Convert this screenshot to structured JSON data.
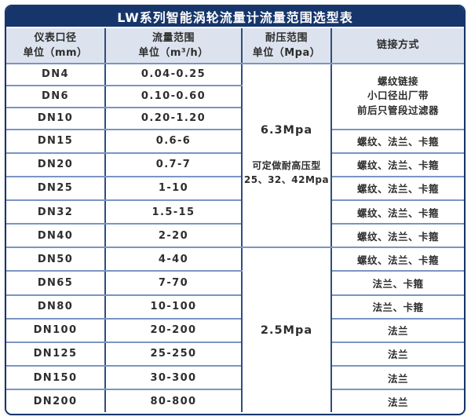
{
  "title": "LW系列智能涡轮流量计流量范围选型表",
  "columns": [
    {
      "line1": "仪表口径",
      "line2": "单位（mm）"
    },
    {
      "line1": "流量范围",
      "line2": "单位（m³/h）"
    },
    {
      "line1": "耐压范围",
      "line2": "单位（Mpa）"
    },
    {
      "line1": "链接方式"
    }
  ],
  "rows": [
    {
      "dn": "DN4",
      "flow": "0.04-0.25"
    },
    {
      "dn": "DN6",
      "flow": "0.10-0.60"
    },
    {
      "dn": "DN10",
      "flow": "0.20-1.20"
    },
    {
      "dn": "DN15",
      "flow": "0.6-6",
      "connection": "螺纹、法兰、卡箍"
    },
    {
      "dn": "DN20",
      "flow": "0.7-7",
      "connection": "螺纹、法兰、卡箍"
    },
    {
      "dn": "DN25",
      "flow": "1-10",
      "connection": "螺纹、法兰、卡箍"
    },
    {
      "dn": "DN32",
      "flow": "1.5-15",
      "connection": "螺纹、法兰、卡箍"
    },
    {
      "dn": "DN40",
      "flow": "2-20",
      "connection": "螺纹、法兰、卡箍"
    },
    {
      "dn": "DN50",
      "flow": "4-40",
      "connection": "螺纹、法兰、卡箍"
    },
    {
      "dn": "DN65",
      "flow": "7-70",
      "connection": "法兰、卡箍"
    },
    {
      "dn": "DN80",
      "flow": "10-100",
      "connection": "法兰、卡箍"
    },
    {
      "dn": "DN100",
      "flow": "20-200",
      "connection": "法兰"
    },
    {
      "dn": "DN125",
      "flow": "25-250",
      "connection": "法兰"
    },
    {
      "dn": "DN150",
      "flow": "30-300",
      "connection": "法兰"
    },
    {
      "dn": "DN200",
      "flow": "80-800",
      "connection": "法兰"
    }
  ],
  "pressure": {
    "group1": {
      "value": "6.3Mpa",
      "note_line1": "可定做耐高压型",
      "note_line2": "25、32、42Mpa"
    },
    "group2": {
      "value": "2.5Mpa"
    }
  },
  "connection_group": {
    "line1": "螺纹链接",
    "line2": "小口径出厂带",
    "line3": "前后只管段过滤器"
  },
  "colors": {
    "title_bg": "#16356b",
    "header_bg": "#dce3ee",
    "grid_vertical": "#2e4e7e",
    "grid_horizontal": "#7a95c1",
    "title_text": "#ffffff",
    "body_text": "#2d2d2d"
  }
}
